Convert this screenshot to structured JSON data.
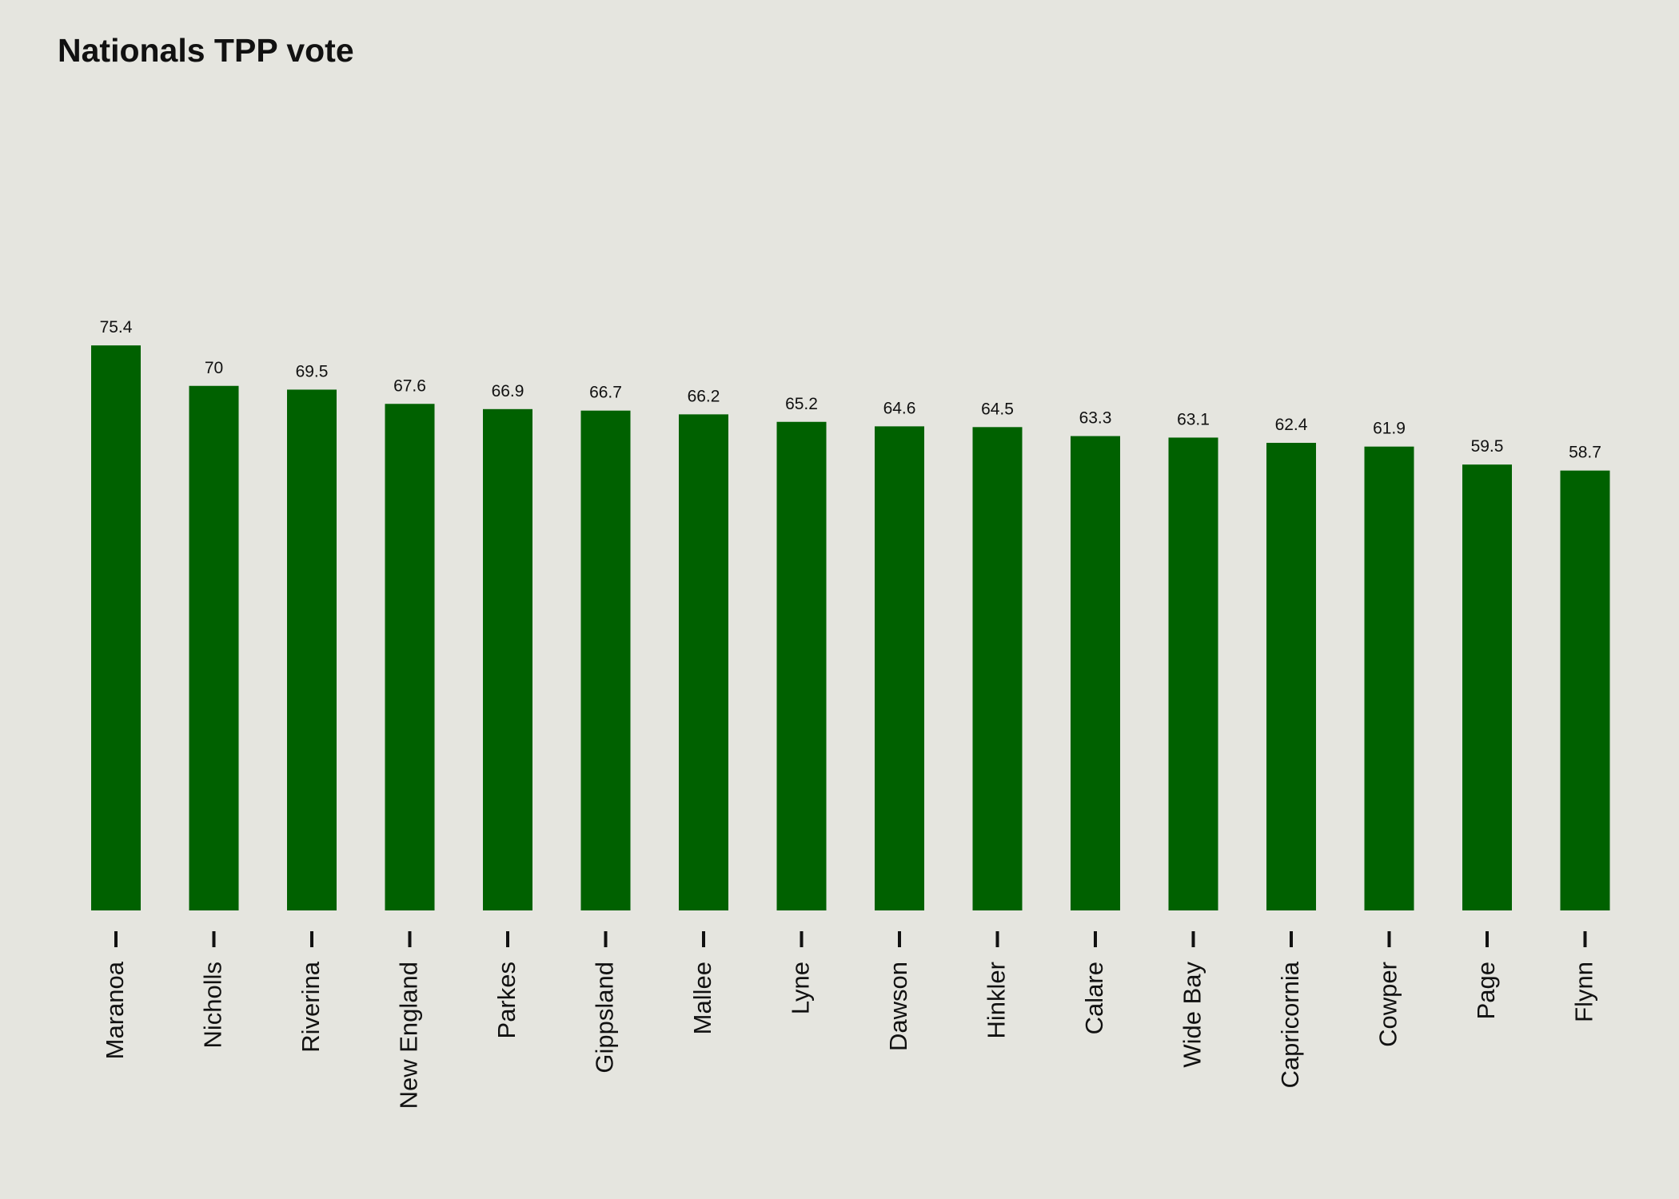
{
  "colors": {
    "background": "#e5e5df",
    "bar": "#006100",
    "text": "#111111"
  },
  "chart_data": {
    "type": "bar",
    "title": "Nationals TPP vote",
    "xlabel": "",
    "ylabel": "",
    "ylim": [
      0,
      76
    ],
    "grid": false,
    "legend": "none",
    "categories": [
      "Maranoa",
      "Nicholls",
      "Riverina",
      "New England",
      "Parkes",
      "Gippsland",
      "Mallee",
      "Lyne",
      "Dawson",
      "Hinkler",
      "Calare",
      "Wide Bay",
      "Capricornia",
      "Cowper",
      "Page",
      "Flynn"
    ],
    "values": [
      75.4,
      70,
      69.5,
      67.6,
      66.9,
      66.7,
      66.2,
      65.2,
      64.6,
      64.5,
      63.3,
      63.1,
      62.4,
      61.9,
      59.5,
      58.7
    ],
    "data_labels": [
      "75.4",
      "70",
      "69.5",
      "67.6",
      "66.9",
      "66.7",
      "66.2",
      "65.2",
      "64.6",
      "64.5",
      "63.3",
      "63.1",
      "62.4",
      "61.9",
      "59.5",
      "58.7"
    ]
  }
}
